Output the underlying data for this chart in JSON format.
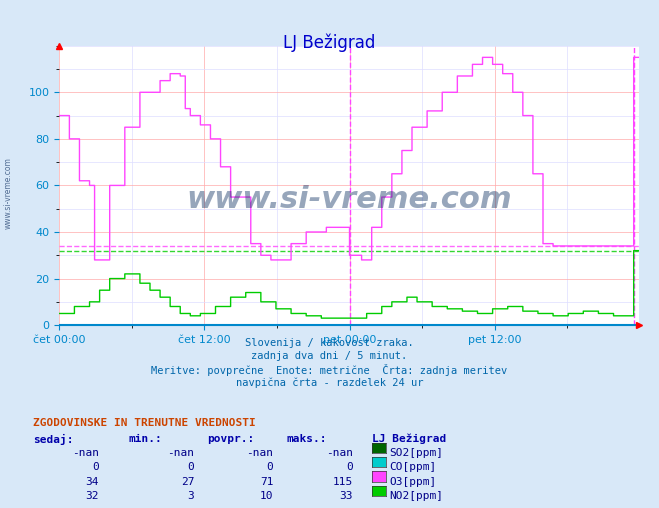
{
  "title": "LJ Bežigrad",
  "title_color": "#0000cc",
  "bg_color": "#d8e8f8",
  "plot_bg_color": "#ffffff",
  "grid_color_major": "#ffaaaa",
  "grid_color_minor": "#ddddff",
  "xlabel_ticks": [
    "čet 00:00",
    "čet 12:00",
    "pet 00:00",
    "pet 12:00"
  ],
  "xlabel_tick_positions": [
    0,
    288,
    576,
    864
  ],
  "total_points": 1152,
  "ylim": [
    0,
    120
  ],
  "yticks": [
    0,
    20,
    40,
    60,
    80,
    100
  ],
  "axis_color": "#0088cc",
  "tick_color": "#0088cc",
  "vline_color": "#ff44ff",
  "vline_positions": [
    576,
    1140
  ],
  "hline_O3_value": 34,
  "hline_NO2_value": 32,
  "hline_O3_color": "#ff44ff",
  "hline_NO2_color": "#00cc00",
  "subtitle_lines": [
    "Slovenija / kakovost zraka.",
    "zadnja dva dni / 5 minut.",
    "Meritve: povprečne  Enote: metrične  Črta: zadnja meritev",
    "navpična črta - razdelek 24 ur"
  ],
  "subtitle_color": "#0066aa",
  "table_header_color": "#cc4400",
  "table_text_color": "#000088",
  "table_label_color": "#0000aa",
  "SO2_color": "#006600",
  "CO_color": "#00cccc",
  "O3_color": "#ff44ff",
  "NO2_color": "#00cc00",
  "watermark_color": "#1a3a6a",
  "watermark_alpha": 0.45,
  "sidebar_text": "www.si-vreme.com",
  "sidebar_color": "#1a3a6a"
}
